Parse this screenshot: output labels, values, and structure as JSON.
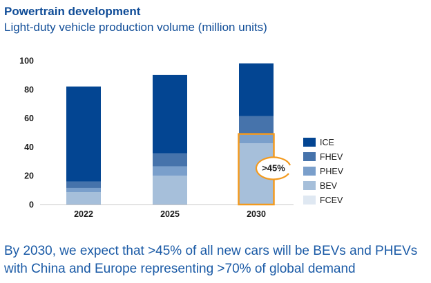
{
  "header": {
    "title": "Powertrain development",
    "subtitle": "Light-duty vehicle production volume (million units)"
  },
  "chart_data": {
    "type": "bar",
    "stacked": true,
    "title": "Powertrain development",
    "subtitle": "Light-duty vehicle production volume (million units)",
    "xlabel": "",
    "ylabel": "",
    "categories": [
      "2022",
      "2025",
      "2030"
    ],
    "ylim": [
      0,
      100
    ],
    "yticks": [
      0,
      20,
      40,
      60,
      80,
      100
    ],
    "grid": false,
    "legend_position": "right",
    "series": [
      {
        "name": "FCEV",
        "color": "#dfe8f2",
        "values": [
          0,
          0,
          0
        ]
      },
      {
        "name": "BEV",
        "color": "#a6bfda",
        "values": [
          8.5,
          20,
          42.5
        ]
      },
      {
        "name": "PHEV",
        "color": "#7a9fcb",
        "values": [
          3,
          6.5,
          6.5
        ]
      },
      {
        "name": "FHEV",
        "color": "#4673ab",
        "values": [
          4.5,
          9,
          12.5
        ]
      },
      {
        "name": "ICE",
        "color": "#034592",
        "values": [
          66,
          54.5,
          36.5
        ]
      }
    ],
    "legend_order": [
      "ICE",
      "FHEV",
      "PHEV",
      "BEV",
      "FCEV"
    ],
    "annotations": [
      {
        "category": "2030",
        "text": ">45%",
        "highlight_series": [
          "BEV",
          "PHEV"
        ],
        "color": "#f39a1e"
      }
    ]
  },
  "footer": {
    "line1": "By 2030, we expect that >45% of all new cars will be BEVs and PHEVs",
    "line2": "with China and Europe representing >70% of global demand"
  }
}
